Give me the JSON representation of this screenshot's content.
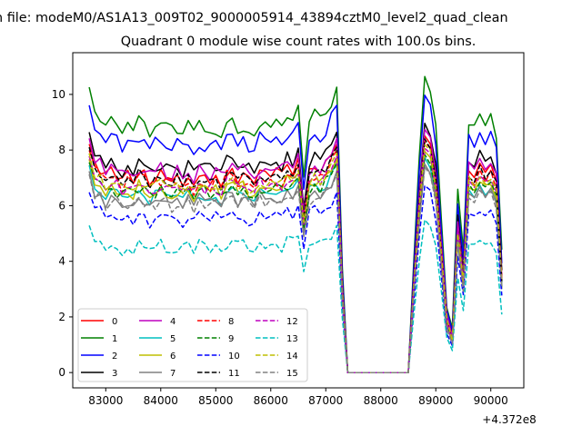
{
  "chart_data": {
    "type": "line",
    "suptitle": "n file: modeM0/AS1A13_009T02_9000005914_43894cztM0_level2_quad_clean",
    "title": "Quadrant 0 module wise count rates with 100.0s bins.",
    "xlabel": "",
    "ylabel": "",
    "x_offset_label": "+4.372e8",
    "xlim": [
      82400,
      90600
    ],
    "ylim": [
      -0.55,
      11.5
    ],
    "x_ticks": [
      83000,
      84000,
      85000,
      86000,
      87000,
      88000,
      89000,
      90000
    ],
    "x_tick_labels": [
      "83000",
      "84000",
      "85000",
      "86000",
      "87000",
      "88000",
      "89000",
      "90000"
    ],
    "y_ticks": [
      0,
      2,
      4,
      6,
      8,
      10
    ],
    "y_tick_labels": [
      "0",
      "2",
      "4",
      "6",
      "8",
      "10"
    ],
    "grid": false,
    "legend": {
      "placement": "lower-left",
      "columns": 4
    },
    "x_start": 82700,
    "x_step": 100,
    "series": [
      {
        "name": "0",
        "color": "#ff0000",
        "dash": "solid",
        "level": 7.6,
        "spread": 0.55
      },
      {
        "name": "1",
        "color": "#008000",
        "dash": "solid",
        "level": 9.5,
        "spread": 0.65
      },
      {
        "name": "2",
        "color": "#0000ff",
        "dash": "solid",
        "level": 8.9,
        "spread": 0.6
      },
      {
        "name": "3",
        "color": "#000000",
        "dash": "solid",
        "level": 8.0,
        "spread": 0.55
      },
      {
        "name": "4",
        "color": "#bf00bf",
        "dash": "solid",
        "level": 7.8,
        "spread": 0.55
      },
      {
        "name": "5",
        "color": "#00bfbf",
        "dash": "solid",
        "level": 6.9,
        "spread": 0.5
      },
      {
        "name": "6",
        "color": "#bfbf00",
        "dash": "solid",
        "level": 7.1,
        "spread": 0.5
      },
      {
        "name": "7",
        "color": "#808080",
        "dash": "solid",
        "level": 6.7,
        "spread": 0.5
      },
      {
        "name": "8",
        "color": "#ff0000",
        "dash": "dashed",
        "level": 7.4,
        "spread": 0.5
      },
      {
        "name": "9",
        "color": "#008000",
        "dash": "dashed",
        "level": 7.0,
        "spread": 0.5
      },
      {
        "name": "10",
        "color": "#0000ff",
        "dash": "dashed",
        "level": 6.0,
        "spread": 0.45
      },
      {
        "name": "11",
        "color": "#000000",
        "dash": "dashed",
        "level": 7.5,
        "spread": 0.5
      },
      {
        "name": "12",
        "color": "#bf00bf",
        "dash": "dashed",
        "level": 7.2,
        "spread": 0.5
      },
      {
        "name": "13",
        "color": "#00bfbf",
        "dash": "dashed",
        "level": 4.9,
        "spread": 0.45
      },
      {
        "name": "14",
        "color": "#bfbf00",
        "dash": "dashed",
        "level": 7.3,
        "spread": 0.5
      },
      {
        "name": "15",
        "color": "#808080",
        "dash": "dashed",
        "level": 6.6,
        "spread": 0.5
      }
    ]
  }
}
